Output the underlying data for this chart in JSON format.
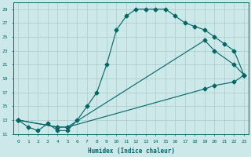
{
  "xlabel": "Humidex (Indice chaleur)",
  "bg_color": "#cce8e8",
  "grid_color": "#aacccc",
  "line_color": "#006666",
  "xlim": [
    -0.5,
    23.5
  ],
  "ylim": [
    11,
    30
  ],
  "xticks": [
    0,
    1,
    2,
    3,
    4,
    5,
    6,
    7,
    8,
    9,
    10,
    11,
    12,
    13,
    14,
    15,
    16,
    17,
    18,
    19,
    20,
    21,
    22,
    23
  ],
  "yticks": [
    11,
    13,
    15,
    17,
    19,
    21,
    23,
    25,
    27,
    29
  ],
  "line1_x": [
    0,
    1,
    2,
    3,
    4,
    5,
    6,
    7,
    8,
    9,
    10,
    11,
    12,
    13,
    14,
    15,
    16,
    17,
    18,
    19,
    20,
    21,
    22,
    23
  ],
  "line1_y": [
    13,
    12,
    11.5,
    12.5,
    11.5,
    11.5,
    13,
    15,
    17,
    21,
    26,
    28,
    29,
    29,
    29,
    29,
    28,
    27,
    26.5,
    26,
    25,
    24,
    23,
    19.5
  ],
  "line2_x": [
    0,
    4,
    5,
    19,
    20,
    22,
    23
  ],
  "line2_y": [
    13,
    12,
    12,
    24.5,
    23,
    21,
    19.5
  ],
  "line3_x": [
    0,
    4,
    5,
    19,
    20,
    22,
    23
  ],
  "line3_y": [
    13,
    12,
    12,
    17.5,
    18,
    18.5,
    19.5
  ]
}
